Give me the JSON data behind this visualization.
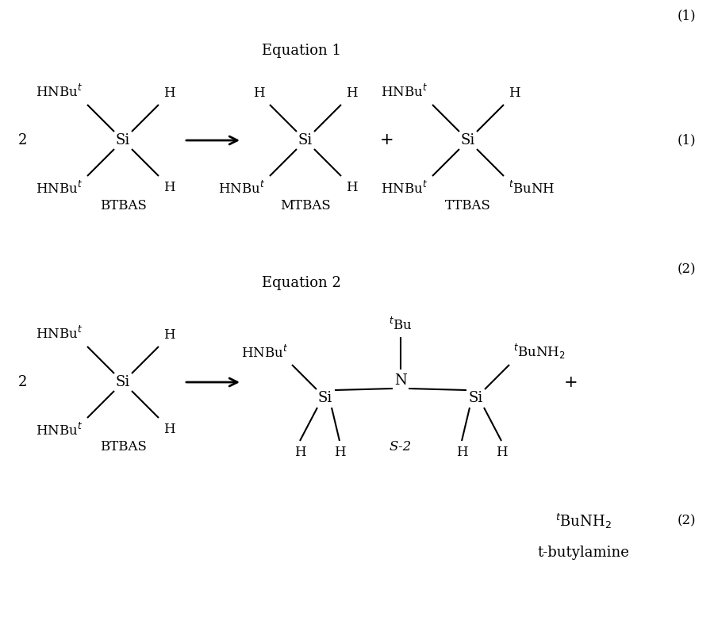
{
  "bg_color": "#ffffff",
  "text_color": "#000000",
  "fig_width": 9.0,
  "fig_height": 7.92,
  "font_family": "DejaVu Serif",
  "equation1_label": "Equation 1",
  "equation2_label": "Equation 2",
  "eq1_number_top": "(1)",
  "eq1_number": "(1)",
  "eq2_number": "(2)",
  "eq2b_number": "(2)"
}
